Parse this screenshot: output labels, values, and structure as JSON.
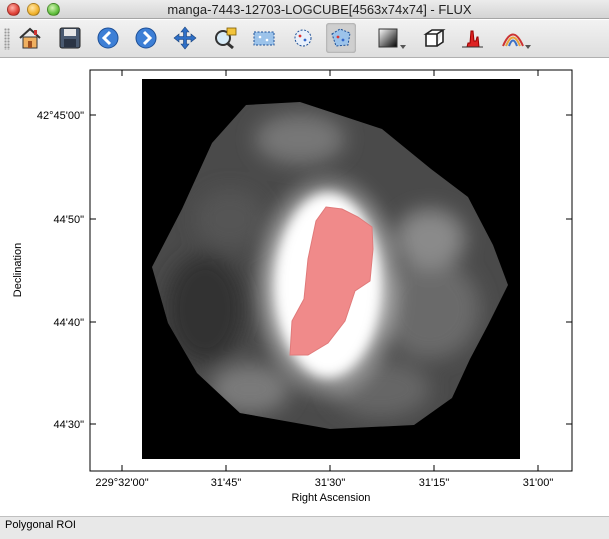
{
  "window": {
    "title": "manga-7443-12703-LOGCUBE[4563x74x74] - FLUX"
  },
  "toolbar": {
    "items": [
      {
        "name": "home-icon",
        "active": false
      },
      {
        "name": "save-icon",
        "active": false
      },
      {
        "name": "back-icon",
        "active": false
      },
      {
        "name": "forward-icon",
        "active": false
      },
      {
        "name": "pan-icon",
        "active": false
      },
      {
        "name": "zoom-icon",
        "active": false
      },
      {
        "name": "rectangle-roi-icon",
        "active": false
      },
      {
        "name": "circle-roi-icon",
        "active": false
      },
      {
        "name": "polygon-roi-icon",
        "active": true
      },
      {
        "name": "colormap-icon",
        "active": false,
        "dropdown": true
      },
      {
        "name": "cube-icon",
        "active": false
      },
      {
        "name": "histogram-icon",
        "active": false
      },
      {
        "name": "contour-icon",
        "active": false,
        "dropdown": true
      }
    ]
  },
  "plot": {
    "xlabel": "Right Ascension",
    "ylabel": "Declination",
    "xticks": [
      "229°32'00\"",
      "31'45\"",
      "31'30\"",
      "31'15\"",
      "31'00\""
    ],
    "yticks": [
      "42°45'00\"",
      "44'50\"",
      "44'40\"",
      "44'30\""
    ],
    "roi_color": "#f08a8a",
    "image_background": "#000000"
  },
  "status": {
    "text": "Polygonal ROI"
  }
}
